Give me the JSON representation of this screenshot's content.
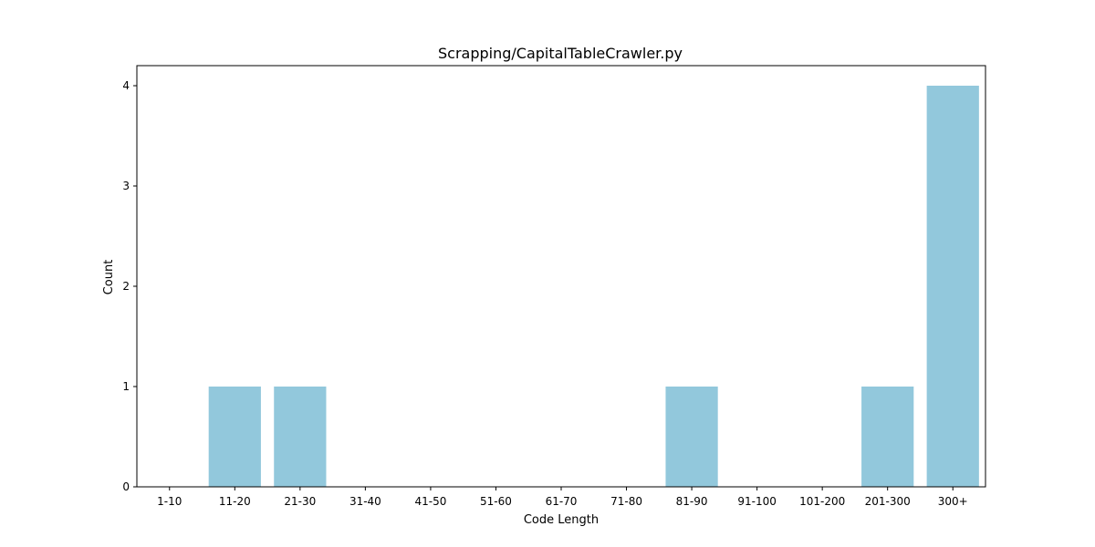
{
  "chart_data": {
    "type": "bar",
    "title": "Scrapping/CapitalTableCrawler.py",
    "xlabel": "Code Length",
    "ylabel": "Count",
    "categories": [
      "1-10",
      "11-20",
      "21-30",
      "31-40",
      "41-50",
      "51-60",
      "61-70",
      "71-80",
      "81-90",
      "91-100",
      "101-200",
      "201-300",
      "300+"
    ],
    "values": [
      0,
      1,
      1,
      0,
      0,
      0,
      0,
      0,
      1,
      0,
      0,
      1,
      4
    ],
    "ylim": [
      0,
      4.2
    ],
    "yticks": [
      0,
      1,
      2,
      3,
      4
    ],
    "grid": false,
    "legend": "none",
    "bar_color": "#92c8dc"
  }
}
